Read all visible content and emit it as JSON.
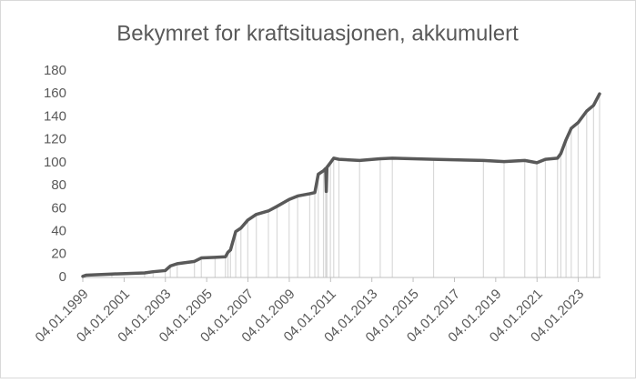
{
  "chart_data": {
    "type": "line",
    "title": "Bekymret for kraftsituasjonen, akkumulert",
    "x": [
      "1999-01-04",
      "1999-03-01",
      "2000-06-01",
      "2002-01-01",
      "2002-06-01",
      "2003-01-01",
      "2003-04-01",
      "2003-08-01",
      "2004-06-01",
      "2004-10-01",
      "2005-06-01",
      "2005-12-01",
      "2006-01-15",
      "2006-03-01",
      "2006-06-01",
      "2006-09-01",
      "2007-01-01",
      "2007-06-01",
      "2008-01-01",
      "2008-06-01",
      "2009-01-01",
      "2009-06-01",
      "2010-01-01",
      "2010-04-01",
      "2010-06-01",
      "2010-09-01",
      "2010-10-10",
      "2010-10-20",
      "2010-11-01",
      "2011-01-01",
      "2011-03-01",
      "2011-06-01",
      "2012-06-01",
      "2013-06-01",
      "2014-01-01",
      "2016-01-01",
      "2018-06-01",
      "2019-06-01",
      "2020-06-01",
      "2021-01-01",
      "2021-06-01",
      "2022-01-01",
      "2022-03-01",
      "2022-06-01",
      "2022-09-01",
      "2023-01-01",
      "2023-06-01",
      "2023-10-01",
      "2024-01-15"
    ],
    "series": [
      {
        "name": "Bekymret",
        "color": "#595959",
        "values": [
          1,
          2,
          3,
          4,
          5,
          6,
          10,
          12,
          14,
          17,
          17.5,
          18,
          22,
          24,
          40,
          43,
          50,
          55,
          58,
          62,
          68,
          71,
          73,
          74,
          90,
          93,
          95,
          75,
          96,
          100,
          104,
          103,
          102,
          103.5,
          104,
          103,
          102,
          101,
          102,
          100,
          103,
          104,
          108,
          120,
          130,
          135,
          145,
          150,
          160
        ]
      }
    ],
    "drop_line_color": "#d9d9d9",
    "xlim": [
      "1999-01-04",
      "2024-02-01"
    ],
    "xticks": [
      {
        "value": "1999-01-04",
        "label": "04.01.1999"
      },
      {
        "value": "2001-01-04",
        "label": "04.01.2001"
      },
      {
        "value": "2003-01-04",
        "label": "04.01.2003"
      },
      {
        "value": "2005-01-04",
        "label": "04.01.2005"
      },
      {
        "value": "2007-01-04",
        "label": "04.01.2007"
      },
      {
        "value": "2009-01-04",
        "label": "04.01.2009"
      },
      {
        "value": "2011-01-04",
        "label": "04.01.2011"
      },
      {
        "value": "2013-01-04",
        "label": "04.01.2013"
      },
      {
        "value": "2015-01-04",
        "label": "04.01.2015"
      },
      {
        "value": "2017-01-04",
        "label": "04.01.2017"
      },
      {
        "value": "2019-01-04",
        "label": "04.01.2019"
      },
      {
        "value": "2021-01-04",
        "label": "04.01.2021"
      },
      {
        "value": "2023-01-04",
        "label": "04.01.2023"
      }
    ],
    "ylim": [
      0,
      180
    ],
    "yticks": [
      0,
      20,
      40,
      60,
      80,
      100,
      120,
      140,
      160,
      180
    ],
    "grid": false
  }
}
